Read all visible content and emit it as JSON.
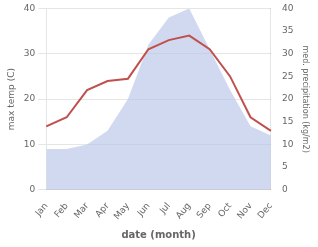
{
  "chart_data": {
    "type": "line",
    "categories": [
      "Jan",
      "Feb",
      "Mar",
      "Apr",
      "May",
      "Jun",
      "Jul",
      "Aug",
      "Sep",
      "Oct",
      "Nov",
      "Dec"
    ],
    "series": [
      {
        "type": "area",
        "color": "#b8c4e8",
        "axis": "y2",
        "values": [
          9,
          9,
          10,
          13,
          20,
          32,
          38,
          40,
          31,
          22,
          14,
          12
        ]
      },
      {
        "type": "line",
        "color": "#c0504d",
        "values": [
          14,
          16,
          22,
          24,
          24.5,
          31,
          33,
          34,
          31,
          25,
          16,
          13
        ]
      }
    ],
    "xlabel": "date (month)",
    "ylabel": "max temp (C)",
    "y2label": "med. precipitation (kg/m2)",
    "ylim": [
      0,
      40
    ],
    "yticks": [
      0,
      10,
      20,
      30,
      40
    ],
    "y2lim": [
      0,
      40
    ],
    "y2ticks": [
      0,
      5,
      10,
      15,
      20,
      25,
      30,
      35,
      40
    ],
    "grid": true
  }
}
